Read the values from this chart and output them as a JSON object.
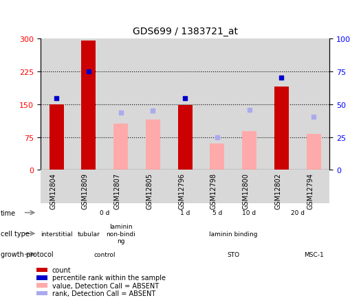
{
  "title": "GDS699 / 1383721_at",
  "samples": [
    "GSM12804",
    "GSM12809",
    "GSM12807",
    "GSM12805",
    "GSM12796",
    "GSM12798",
    "GSM12800",
    "GSM12802",
    "GSM12794"
  ],
  "count_values": [
    150,
    295,
    0,
    0,
    148,
    0,
    0,
    190,
    0
  ],
  "count_absent_values": [
    0,
    0,
    105,
    115,
    0,
    60,
    88,
    0,
    82
  ],
  "percentile_values": [
    163,
    225,
    0,
    0,
    163,
    0,
    0,
    210,
    0
  ],
  "percentile_absent_values": [
    0,
    0,
    130,
    135,
    0,
    75,
    137,
    0,
    122
  ],
  "ylim_left": [
    0,
    300
  ],
  "ylim_right": [
    0,
    100
  ],
  "yticks_left": [
    0,
    75,
    150,
    225,
    300
  ],
  "yticks_right": [
    0,
    25,
    50,
    75,
    100
  ],
  "time_groups": [
    {
      "label": "0 d",
      "start": 0,
      "end": 4,
      "color": "#dff0de"
    },
    {
      "label": "1 d",
      "start": 4,
      "end": 5,
      "color": "#c5e8c3"
    },
    {
      "label": "5 d",
      "start": 5,
      "end": 6,
      "color": "#9ed49b"
    },
    {
      "label": "10 d",
      "start": 6,
      "end": 7,
      "color": "#78c275"
    },
    {
      "label": "20 d",
      "start": 7,
      "end": 9,
      "color": "#44af41"
    }
  ],
  "cell_type_groups": [
    {
      "label": "interstitial",
      "start": 0,
      "end": 1,
      "color": "#b8a9e0"
    },
    {
      "label": "tubular",
      "start": 1,
      "end": 2,
      "color": "#9f8dd4"
    },
    {
      "label": "laminin\nnon-bindi\nng",
      "start": 2,
      "end": 3,
      "color": "#b8a9e0"
    },
    {
      "label": "laminin binding",
      "start": 3,
      "end": 9,
      "color": "#7b67c8"
    }
  ],
  "growth_protocol_groups": [
    {
      "label": "control",
      "start": 0,
      "end": 4,
      "color": "#f9c9c0"
    },
    {
      "label": "STO",
      "start": 4,
      "end": 8,
      "color": "#f09898"
    },
    {
      "label": "MSC-1",
      "start": 8,
      "end": 9,
      "color": "#e07070"
    }
  ],
  "bar_color_present": "#cc0000",
  "bar_color_absent": "#ffaaaa",
  "dot_color_present": "#0000cc",
  "dot_color_absent": "#aaaaee",
  "sample_bg_color": "#d8d8d8",
  "legend_items": [
    {
      "color": "#cc0000",
      "label": "count"
    },
    {
      "color": "#0000cc",
      "label": "percentile rank within the sample"
    },
    {
      "color": "#ffaaaa",
      "label": "value, Detection Call = ABSENT"
    },
    {
      "color": "#aaaaee",
      "label": "rank, Detection Call = ABSENT"
    }
  ]
}
